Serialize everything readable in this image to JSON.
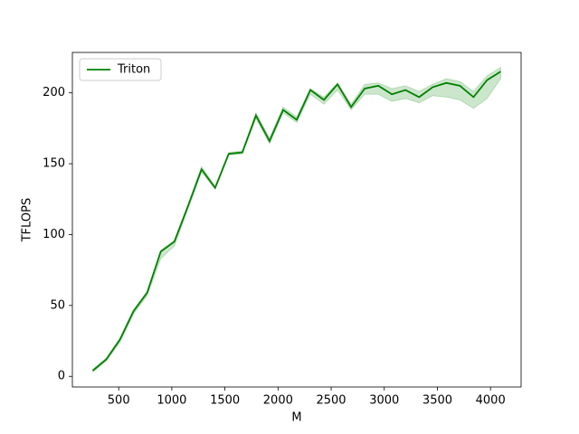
{
  "chart_data": {
    "type": "line",
    "xlabel": "M",
    "ylabel": "TFLOPS",
    "x": [
      256,
      384,
      512,
      640,
      768,
      896,
      1024,
      1152,
      1280,
      1408,
      1536,
      1664,
      1792,
      1920,
      2048,
      2176,
      2304,
      2432,
      2560,
      2688,
      2816,
      2944,
      3072,
      3200,
      3328,
      3456,
      3584,
      3712,
      3840,
      3968,
      4096
    ],
    "series": [
      {
        "name": "Triton",
        "color": "#008000",
        "values": [
          4,
          12,
          26,
          46,
          59,
          88,
          95,
          120,
          146,
          133,
          157,
          158,
          184,
          166,
          188,
          181,
          202,
          195,
          206,
          190,
          203,
          205,
          199,
          202,
          197,
          204,
          207,
          205,
          197,
          209,
          215
        ],
        "lower": [
          3,
          11,
          24,
          44,
          57,
          83,
          92,
          118,
          144,
          132,
          156,
          157,
          182,
          164,
          186,
          179,
          199,
          192,
          202,
          188,
          199,
          199,
          194,
          196,
          193,
          198,
          197,
          195,
          189,
          196,
          210
        ],
        "upper": [
          5,
          13,
          27,
          47,
          60,
          89,
          96,
          121,
          148,
          134,
          158,
          159,
          186,
          168,
          190,
          183,
          203,
          197,
          207,
          192,
          206,
          207,
          203,
          205,
          201,
          206,
          210,
          208,
          201,
          212,
          218
        ]
      }
    ],
    "xlim": [
      64,
      4288
    ],
    "ylim": [
      -7.5,
      228.5
    ],
    "xticks": [
      500,
      1000,
      1500,
      2000,
      2500,
      3000,
      3500,
      4000
    ],
    "yticks": [
      0,
      50,
      100,
      150,
      200
    ],
    "legend": "upper left"
  }
}
